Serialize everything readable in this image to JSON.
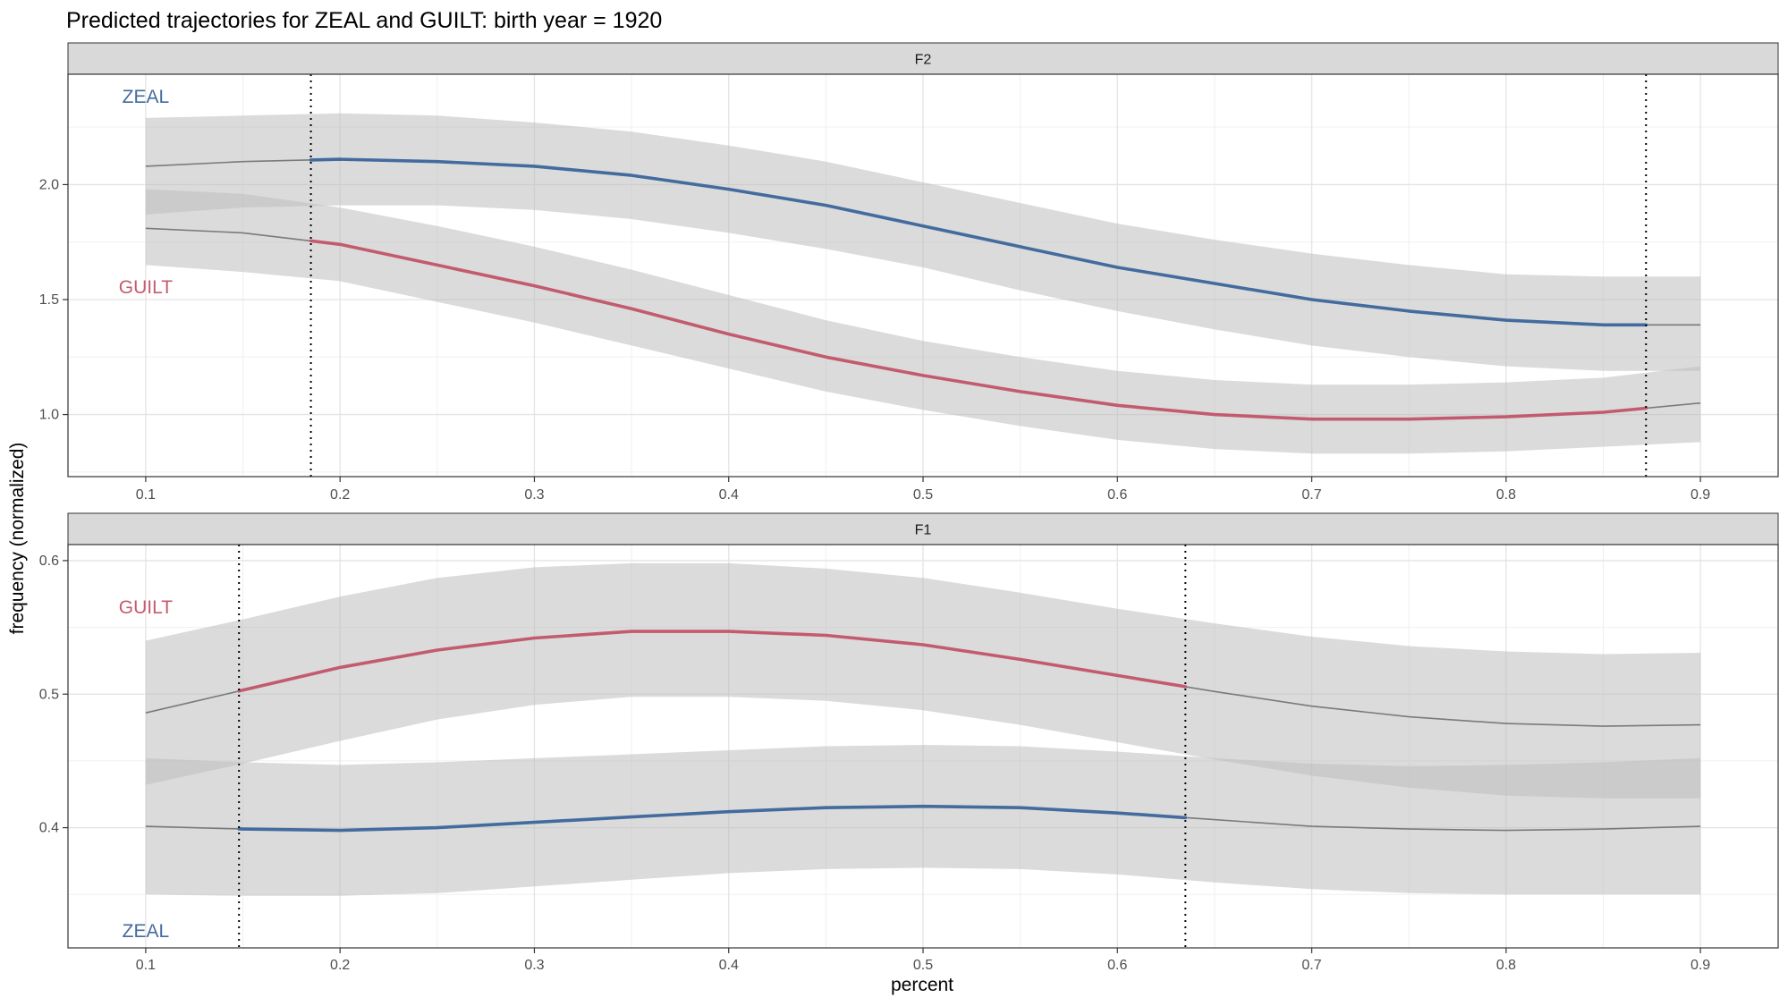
{
  "chart_data": {
    "type": "line",
    "title": "Predicted trajectories for ZEAL and GUILT: birth year = 1920",
    "xlabel": "percent",
    "ylabel": "frequency (normalized)",
    "grid": true,
    "colors": {
      "ZEAL": "#436b9e",
      "GUILT": "#c35b6e",
      "fit": "#7a7a7a",
      "ribbon": "#bdbdbd"
    },
    "panels": [
      {
        "strip": "F2",
        "xlim": [
          0.06,
          0.94
        ],
        "ylim": [
          0.73,
          2.48
        ],
        "xticks": [
          0.1,
          0.2,
          0.3,
          0.4,
          0.5,
          0.6,
          0.7,
          0.8,
          0.9
        ],
        "xtick_labels": [
          "0.1",
          "0.2",
          "0.3",
          "0.4",
          "0.5",
          "0.6",
          "0.7",
          "0.8",
          "0.9"
        ],
        "yticks": [
          1.0,
          1.5,
          2.0
        ],
        "ytick_labels": [
          "1.0",
          "1.5",
          "2.0"
        ],
        "vlines": [
          0.185,
          0.872
        ],
        "x": [
          0.1,
          0.15,
          0.2,
          0.25,
          0.3,
          0.35,
          0.4,
          0.45,
          0.5,
          0.55,
          0.6,
          0.65,
          0.7,
          0.75,
          0.8,
          0.85,
          0.9
        ],
        "series": [
          {
            "name": "ZEAL",
            "label": "ZEAL",
            "values": [
              2.08,
              2.1,
              2.11,
              2.1,
              2.08,
              2.04,
              1.98,
              1.91,
              1.82,
              1.73,
              1.64,
              1.57,
              1.5,
              1.45,
              1.41,
              1.39,
              1.39
            ],
            "lower": [
              1.87,
              1.9,
              1.91,
              1.91,
              1.89,
              1.85,
              1.79,
              1.72,
              1.64,
              1.54,
              1.45,
              1.37,
              1.3,
              1.25,
              1.21,
              1.19,
              1.19
            ],
            "upper": [
              2.29,
              2.3,
              2.31,
              2.3,
              2.27,
              2.23,
              2.17,
              2.1,
              2.01,
              1.92,
              1.83,
              1.76,
              1.7,
              1.65,
              1.61,
              1.6,
              1.6
            ]
          },
          {
            "name": "GUILT",
            "label": "GUILT",
            "values": [
              1.81,
              1.79,
              1.74,
              1.65,
              1.56,
              1.46,
              1.35,
              1.25,
              1.17,
              1.1,
              1.04,
              1.0,
              0.98,
              0.98,
              0.99,
              1.01,
              1.05
            ],
            "lower": [
              1.65,
              1.62,
              1.58,
              1.49,
              1.4,
              1.3,
              1.2,
              1.1,
              1.02,
              0.95,
              0.89,
              0.85,
              0.83,
              0.83,
              0.84,
              0.86,
              0.88
            ],
            "upper": [
              1.98,
              1.96,
              1.9,
              1.82,
              1.73,
              1.63,
              1.52,
              1.41,
              1.32,
              1.25,
              1.19,
              1.15,
              1.13,
              1.13,
              1.14,
              1.16,
              1.21
            ]
          }
        ]
      },
      {
        "strip": "F1",
        "xlim": [
          0.06,
          0.94
        ],
        "ylim": [
          0.31,
          0.612
        ],
        "xticks": [
          0.1,
          0.2,
          0.3,
          0.4,
          0.5,
          0.6,
          0.7,
          0.8,
          0.9
        ],
        "xtick_labels": [
          "0.1",
          "0.2",
          "0.3",
          "0.4",
          "0.5",
          "0.6",
          "0.7",
          "0.8",
          "0.9"
        ],
        "yticks": [
          0.4,
          0.5,
          0.6
        ],
        "ytick_labels": [
          "0.4",
          "0.5",
          "0.6"
        ],
        "vlines": [
          0.148,
          0.635
        ],
        "x": [
          0.1,
          0.15,
          0.2,
          0.25,
          0.3,
          0.35,
          0.4,
          0.45,
          0.5,
          0.55,
          0.6,
          0.65,
          0.7,
          0.75,
          0.8,
          0.85,
          0.9
        ],
        "series": [
          {
            "name": "GUILT",
            "label": "GUILT",
            "values": [
              0.486,
              0.503,
              0.52,
              0.533,
              0.542,
              0.547,
              0.547,
              0.544,
              0.537,
              0.526,
              0.514,
              0.502,
              0.491,
              0.483,
              0.478,
              0.476,
              0.477
            ],
            "lower": [
              0.432,
              0.448,
              0.465,
              0.481,
              0.492,
              0.498,
              0.498,
              0.495,
              0.488,
              0.477,
              0.464,
              0.451,
              0.439,
              0.43,
              0.424,
              0.422,
              0.422
            ],
            "upper": [
              0.54,
              0.556,
              0.573,
              0.587,
              0.595,
              0.598,
              0.598,
              0.594,
              0.587,
              0.576,
              0.564,
              0.553,
              0.543,
              0.536,
              0.532,
              0.53,
              0.531
            ]
          },
          {
            "name": "ZEAL",
            "label": "ZEAL",
            "values": [
              0.401,
              0.399,
              0.398,
              0.4,
              0.404,
              0.408,
              0.412,
              0.415,
              0.416,
              0.415,
              0.411,
              0.406,
              0.401,
              0.399,
              0.398,
              0.399,
              0.401
            ],
            "lower": [
              0.35,
              0.349,
              0.349,
              0.351,
              0.356,
              0.361,
              0.366,
              0.369,
              0.37,
              0.369,
              0.365,
              0.359,
              0.354,
              0.351,
              0.35,
              0.35,
              0.35
            ],
            "upper": [
              0.452,
              0.449,
              0.447,
              0.449,
              0.452,
              0.455,
              0.458,
              0.461,
              0.462,
              0.461,
              0.457,
              0.452,
              0.448,
              0.446,
              0.447,
              0.449,
              0.452
            ]
          }
        ]
      }
    ]
  }
}
